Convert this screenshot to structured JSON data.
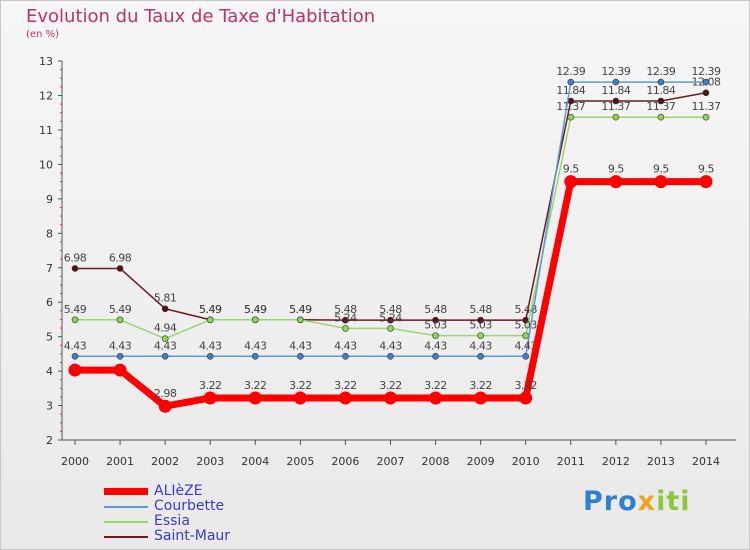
{
  "title": "Evolution du Taux de Taxe d'Habitation",
  "subtitle": "(en %)",
  "logo": {
    "p1": "Pro",
    "p2": "x",
    "p3": "iti"
  },
  "chart_data": {
    "type": "line",
    "x": [
      "2000",
      "2001",
      "2002",
      "2003",
      "2004",
      "2005",
      "2006",
      "2007",
      "2008",
      "2009",
      "2010",
      "2011",
      "2012",
      "2013",
      "2014"
    ],
    "yticks": [
      "2",
      "3",
      "4",
      "5",
      "6",
      "7",
      "8",
      "9",
      "10",
      "11",
      "12",
      "13"
    ],
    "ylim": [
      2,
      13
    ],
    "grid": false,
    "legend_position": "bottom-left",
    "series": [
      {
        "name": "Saint-Maur",
        "color": "#6b1a22",
        "point_color": "#5a0f17",
        "values": [
          6.98,
          6.98,
          5.81,
          5.49,
          5.49,
          5.49,
          5.48,
          5.48,
          5.48,
          5.48,
          5.48,
          11.84,
          11.84,
          11.84,
          12.08
        ],
        "labels": [
          "6.98",
          "6.98",
          "5.81",
          "5.49",
          "5.49",
          "5.49",
          "5.48",
          "5.48",
          "5.48",
          "5.48",
          "5.48",
          "11.84",
          "11.84",
          "11.84",
          "12.08"
        ]
      },
      {
        "name": "Essia",
        "color": "#9ad66e",
        "point_color": "#8fd456",
        "values": [
          5.49,
          5.49,
          4.94,
          5.49,
          5.49,
          5.49,
          5.24,
          5.24,
          5.03,
          5.03,
          5.03,
          11.37,
          11.37,
          11.37,
          11.37
        ],
        "labels": [
          "5.49",
          "5.49",
          "4.94",
          "5.49",
          "5.49",
          "5.49",
          "5.24",
          "5.24",
          "5.03",
          "5.03",
          "5.03",
          "11.37",
          "11.37",
          "11.37",
          "11.37"
        ]
      },
      {
        "name": "Courbette",
        "color": "#5a9bd5",
        "point_color": "#3a82c8",
        "values": [
          4.43,
          4.43,
          4.43,
          4.43,
          4.43,
          4.43,
          4.43,
          4.43,
          4.43,
          4.43,
          4.43,
          12.39,
          12.39,
          12.39,
          12.39
        ],
        "labels": [
          "4.43",
          "4.43",
          "4.43",
          "4.43",
          "4.43",
          "4.43",
          "4.43",
          "4.43",
          "4.43",
          "4.43",
          "4.43",
          "12.39",
          "12.39",
          "12.39",
          "12.39"
        ]
      },
      {
        "name": "ALIèZE",
        "color": "#ff0000",
        "point_color": "#ff0000",
        "values": [
          4.03,
          4.03,
          2.98,
          3.22,
          3.22,
          3.22,
          3.22,
          3.22,
          3.22,
          3.22,
          3.22,
          9.5,
          9.5,
          9.5,
          9.5
        ],
        "labels": [
          "",
          "",
          "2.98",
          "3.22",
          "3.22",
          "3.22",
          "3.22",
          "3.22",
          "3.22",
          "3.22",
          "3.22",
          "9.5",
          "9.5",
          "9.5",
          "9.5"
        ]
      }
    ],
    "legend_order": [
      "ALIèZE",
      "Courbette",
      "Essia",
      "Saint-Maur"
    ]
  }
}
